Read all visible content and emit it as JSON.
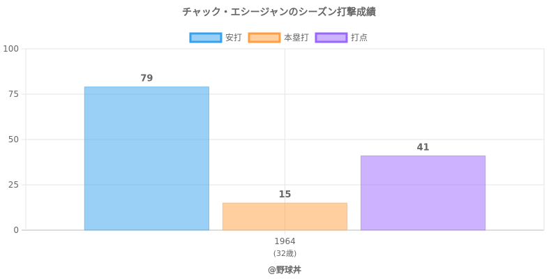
{
  "chart_data": {
    "type": "bar",
    "title": "チャック・エシージャンのシーズン打撃成績",
    "categories": [
      "1964"
    ],
    "category_sublabels": [
      "(32歳)"
    ],
    "series": [
      {
        "name": "安打",
        "values": [
          79
        ],
        "color": "#36a2eb"
      },
      {
        "name": "本塁打",
        "values": [
          15
        ],
        "color": "#ff9f40"
      },
      {
        "name": "打点",
        "values": [
          41
        ],
        "color": "#9966ff"
      }
    ],
    "ylim": [
      0,
      100
    ],
    "yticks": [
      0,
      25,
      50,
      75,
      100
    ],
    "grid": true,
    "legend": "top",
    "xlabel": "",
    "ylabel": ""
  },
  "footer": "@野球丼"
}
